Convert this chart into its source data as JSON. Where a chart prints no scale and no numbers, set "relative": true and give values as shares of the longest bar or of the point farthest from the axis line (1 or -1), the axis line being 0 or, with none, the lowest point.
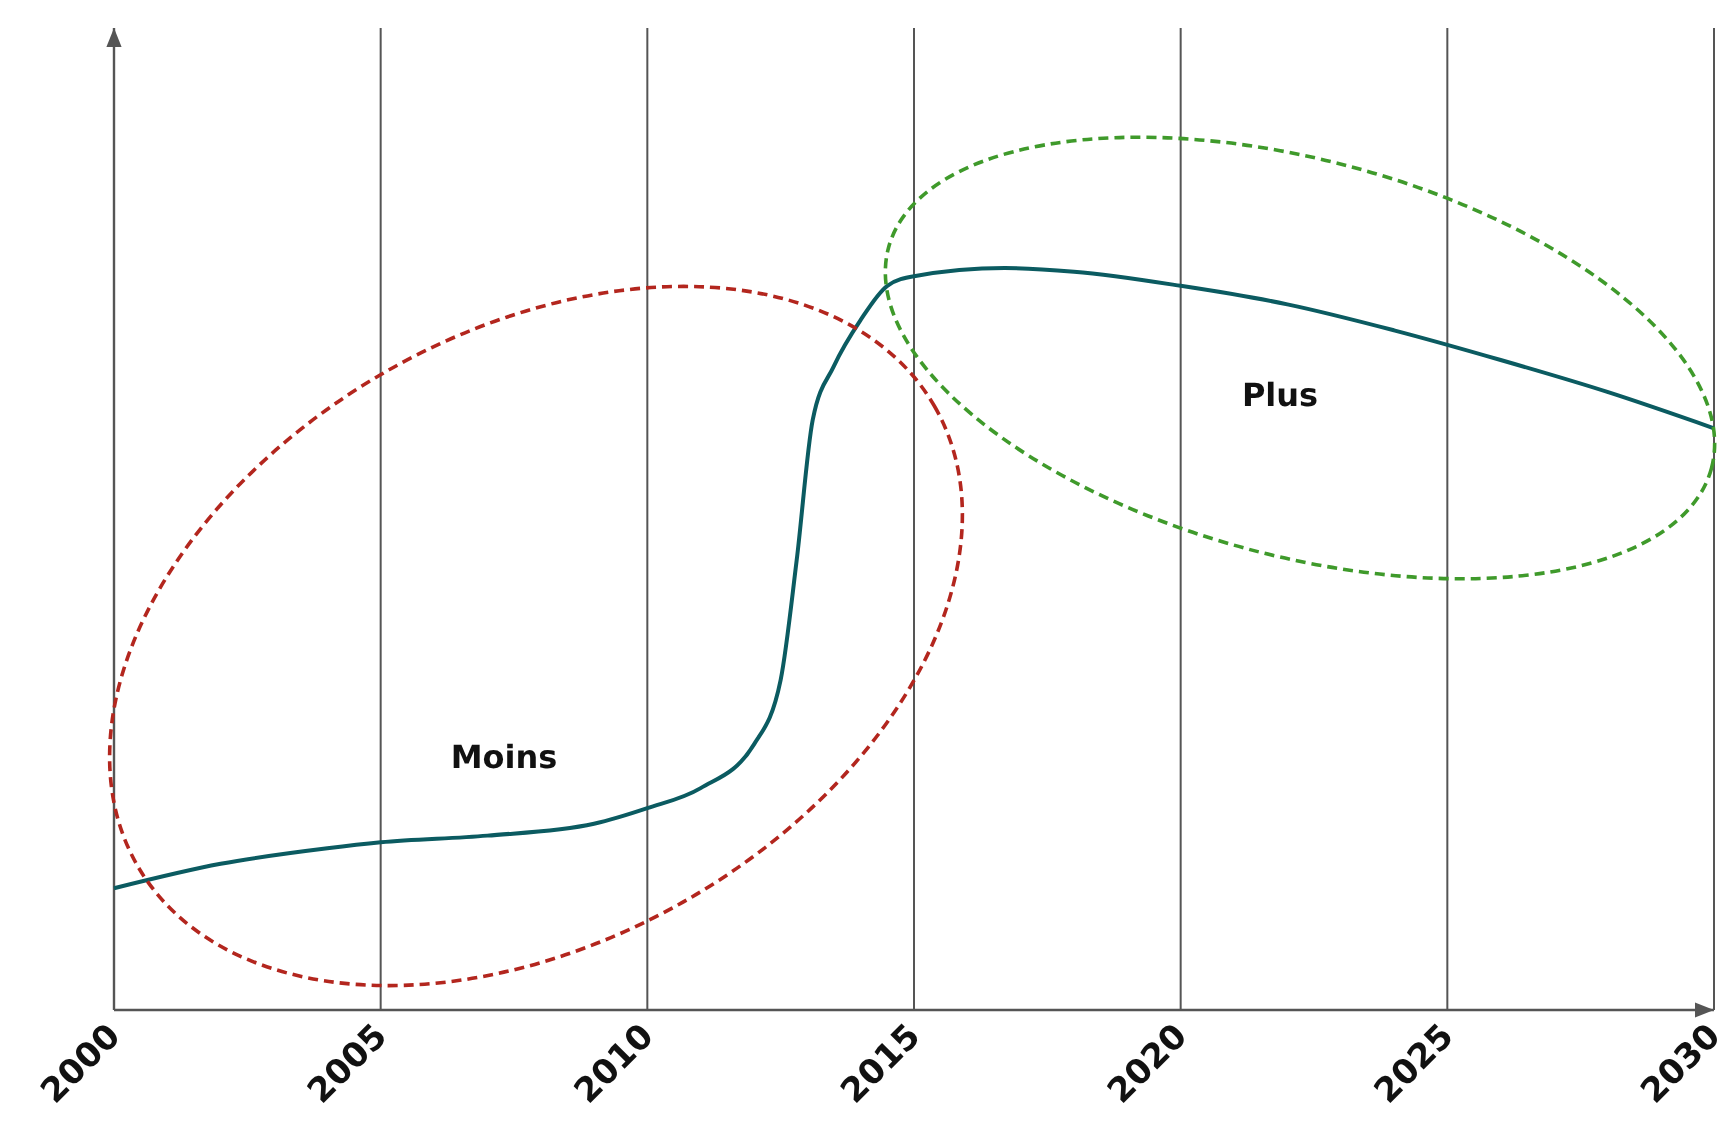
{
  "chart_data": {
    "type": "line",
    "relative": true,
    "x": [
      2000,
      2002,
      2004,
      2005,
      2007,
      2009,
      2010,
      2011,
      2012,
      2012.5,
      2012.8,
      2013.1,
      2013.5,
      2014,
      2014.5,
      2015,
      2016.7,
      2018,
      2020,
      2022,
      2024,
      2026,
      2028,
      2030
    ],
    "series": [
      {
        "color": "#0b5b61",
        "values": [
          0.164,
          0.197,
          0.218,
          0.226,
          0.235,
          0.251,
          0.272,
          0.299,
          0.358,
          0.445,
          0.606,
          0.795,
          0.868,
          0.93,
          0.976,
          0.989,
          1,
          0.995,
          0.976,
          0.951,
          0.916,
          0.876,
          0.833,
          0.784
        ]
      }
    ],
    "xlim": [
      2000,
      2030
    ],
    "xticks": [
      2000,
      2005,
      2010,
      2015,
      2020,
      2025,
      2030
    ],
    "grid": "x",
    "tick_labels": "x",
    "marker": "none",
    "line_style": "solid",
    "annotations": [
      "Moins",
      "Plus"
    ]
  }
}
